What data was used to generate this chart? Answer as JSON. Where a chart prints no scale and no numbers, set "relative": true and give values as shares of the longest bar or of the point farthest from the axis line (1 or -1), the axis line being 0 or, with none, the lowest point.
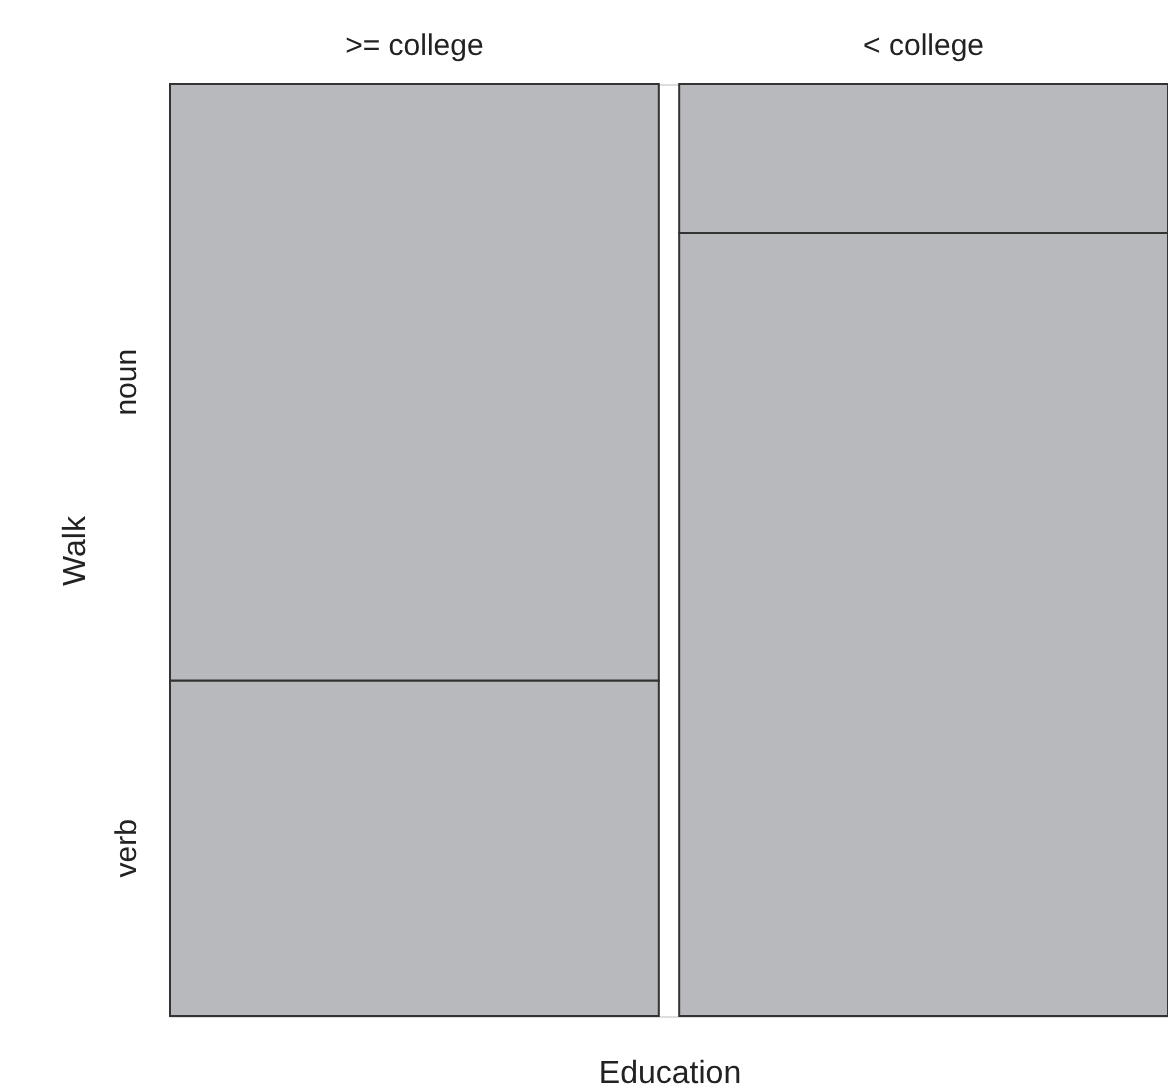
{
  "chart_data": {
    "type": "bar",
    "stacked": true,
    "relative": true,
    "xlabel": "Education",
    "ylabel": "Walk",
    "categories": [
      ">= college",
      "< college"
    ],
    "series": [
      {
        "name": "verb",
        "color": "#b8b9bd",
        "values": [
          0.36,
          0.84
        ]
      },
      {
        "name": "noun",
        "color": "#b8b9bd",
        "values": [
          0.64,
          0.16
        ]
      }
    ]
  }
}
